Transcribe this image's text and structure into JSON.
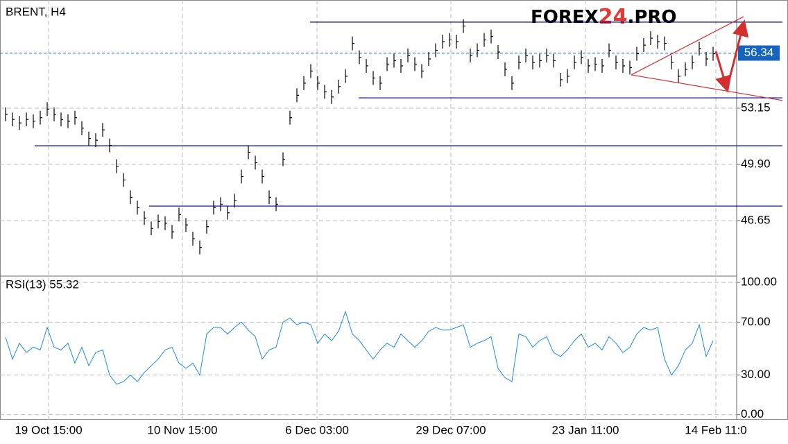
{
  "chart_data": {
    "type": "ohlc",
    "title": "BRENT, H4",
    "logo_parts": [
      "FOREX",
      "24",
      ".PRO"
    ],
    "xlim": [
      -0.3,
      105.4
    ],
    "xticks": [
      {
        "value": 6.2,
        "label": "19 Oct 15:00"
      },
      {
        "value": 25.5,
        "label": "10 Nov 15:00"
      },
      {
        "value": 44.9,
        "label": "6 Dec 03:00"
      },
      {
        "value": 64.2,
        "label": "29 Dec 07:00"
      },
      {
        "value": 83.6,
        "label": "23 Jan 11:00"
      },
      {
        "value": 102.4,
        "label": "14 Feb 11:0"
      }
    ],
    "ylim": [
      43.44,
      59.41
    ],
    "yticks": [
      53.15,
      {
        "value": 49.9,
        "label": "49.90"
      },
      46.65
    ],
    "color": "#000000",
    "high": [
      53.2,
      52.9,
      52.7,
      52.9,
      52.8,
      53.0,
      53.5,
      53.2,
      52.9,
      52.8,
      53.0,
      52.4,
      51.8,
      51.7,
      52.3,
      51.4,
      50.2,
      49.4,
      48.4,
      47.8,
      47.2,
      46.6,
      47.0,
      46.9,
      46.4,
      47.4,
      46.8,
      46.0,
      45.5,
      46.7,
      47.8,
      48.0,
      47.5,
      48.2,
      49.6,
      51.0,
      50.4,
      49.6,
      48.4,
      48.0,
      50.6,
      53.0,
      54.3,
      55.0,
      55.7,
      55.0,
      54.5,
      54.2,
      54.8,
      55.4,
      57.3,
      56.5,
      56.0,
      55.3,
      55.0,
      56.1,
      56.3,
      56.0,
      56.6,
      56.1,
      55.7,
      56.4,
      56.9,
      57.4,
      57.5,
      57.4,
      58.3,
      56.6,
      56.9,
      57.5,
      57.7,
      56.8,
      55.8,
      55.0,
      56.2,
      56.6,
      56.2,
      56.3,
      56.6,
      56.3,
      55.2,
      55.4,
      56.2,
      56.5,
      56.0,
      56.1,
      56.0,
      56.9,
      56.2,
      56.0,
      55.9,
      56.7,
      57.2,
      57.6,
      57.4,
      57.3,
      56.2,
      55.4,
      55.8,
      56.2,
      57.0,
      56.4,
      56.7
    ],
    "low": [
      52.4,
      52.1,
      51.9,
      52.1,
      52.0,
      52.2,
      52.7,
      52.4,
      52.1,
      52.0,
      52.2,
      51.6,
      51.0,
      50.9,
      51.5,
      50.6,
      49.4,
      48.6,
      47.6,
      47.0,
      46.4,
      45.8,
      46.2,
      46.1,
      45.6,
      46.6,
      46.0,
      45.2,
      44.7,
      45.9,
      47.0,
      47.2,
      46.7,
      47.4,
      48.8,
      50.2,
      49.6,
      48.8,
      47.6,
      47.2,
      49.8,
      52.2,
      53.5,
      54.2,
      54.9,
      54.2,
      53.7,
      53.4,
      54.0,
      54.6,
      56.5,
      55.7,
      55.2,
      54.5,
      54.2,
      55.3,
      55.5,
      55.2,
      55.8,
      55.3,
      54.9,
      55.6,
      56.1,
      56.6,
      56.7,
      56.6,
      57.5,
      55.8,
      56.1,
      56.7,
      56.9,
      56.0,
      55.0,
      54.2,
      55.4,
      55.8,
      55.4,
      55.5,
      55.8,
      55.5,
      54.4,
      54.6,
      55.4,
      55.7,
      55.2,
      55.3,
      55.2,
      56.1,
      55.4,
      55.2,
      55.1,
      55.9,
      56.4,
      56.8,
      56.6,
      56.5,
      55.4,
      54.6,
      55.0,
      55.4,
      56.2,
      55.6,
      55.9
    ],
    "values": [
      52.8,
      52.5,
      52.3,
      52.5,
      52.4,
      52.6,
      53.1,
      52.8,
      52.5,
      52.4,
      52.6,
      52.0,
      51.4,
      51.3,
      51.9,
      51.0,
      49.8,
      49.0,
      48.0,
      47.4,
      46.8,
      46.2,
      46.6,
      46.5,
      46.0,
      47.0,
      46.4,
      45.6,
      45.1,
      46.3,
      47.4,
      47.6,
      47.1,
      47.8,
      49.2,
      50.6,
      50.0,
      49.2,
      48.0,
      47.6,
      50.2,
      52.6,
      53.9,
      54.6,
      55.3,
      54.6,
      54.1,
      53.8,
      54.4,
      55.0,
      56.9,
      56.1,
      55.6,
      54.9,
      54.6,
      55.7,
      55.9,
      55.6,
      56.2,
      55.7,
      55.3,
      56.0,
      56.5,
      57.0,
      57.1,
      57.0,
      57.9,
      56.2,
      56.5,
      57.1,
      57.3,
      56.4,
      55.4,
      54.6,
      55.8,
      56.2,
      55.8,
      55.9,
      56.2,
      55.9,
      54.8,
      55.0,
      55.8,
      56.1,
      55.6,
      55.7,
      55.6,
      56.5,
      55.8,
      55.6,
      55.5,
      56.3,
      56.8,
      57.2,
      57.0,
      56.9,
      55.8,
      55.0,
      55.4,
      55.8,
      56.6,
      56.0,
      56.3
    ],
    "levels": [
      {
        "value": 58.13,
        "from": 43.9
      },
      {
        "value": 53.75,
        "from": 50.9
      },
      {
        "value": 50.98,
        "from": 4.2
      },
      {
        "value": 47.49,
        "from": 20.7
      }
    ],
    "level_color": "#00008b",
    "last_price": 56.34,
    "last_price_color": "#1565c0",
    "trend_color": "#d32f2f",
    "trend_lines": [
      [
        [
          90.2,
          55.08
        ],
        [
          106.4,
          58.45
        ]
      ],
      [
        [
          90.2,
          55.08
        ],
        [
          112,
          53.6
        ]
      ]
    ],
    "arrow_points": [
      [
        102.4,
        56.44
      ],
      [
        104,
        54.28
      ],
      [
        106.4,
        58.05
      ]
    ],
    "rsi": {
      "label": "RSI(13) 55.32",
      "color": "#1e88e5",
      "ylim": [
        -3.8,
        104.8
      ],
      "yticks": [
        {
          "value": 100,
          "label": "100.00"
        },
        {
          "value": 70,
          "label": "70.00"
        },
        {
          "value": 30,
          "label": "30.00"
        },
        {
          "value": 0,
          "label": "0.00"
        }
      ],
      "values": [
        58.6,
        42,
        54,
        47,
        51,
        49,
        66,
        51,
        49,
        54,
        39,
        51,
        37,
        47,
        49,
        30,
        23,
        25,
        30,
        25,
        32,
        37,
        42,
        49,
        51,
        39,
        35,
        39,
        30,
        61,
        66,
        66,
        61,
        66,
        70,
        64,
        59,
        42,
        49,
        51,
        70,
        73,
        68,
        70,
        68,
        54,
        61,
        56,
        63,
        78,
        61,
        56,
        49,
        42,
        49,
        54,
        51,
        61,
        56,
        51,
        56,
        63,
        66,
        64,
        64,
        66,
        68,
        51,
        54,
        56,
        59,
        35,
        28,
        25,
        61,
        59,
        51,
        56,
        59,
        47,
        44,
        49,
        56,
        61,
        51,
        54,
        49,
        59,
        54,
        47,
        51,
        61,
        66,
        64,
        66,
        42,
        30,
        37,
        49,
        54,
        68,
        44,
        56
      ]
    }
  }
}
